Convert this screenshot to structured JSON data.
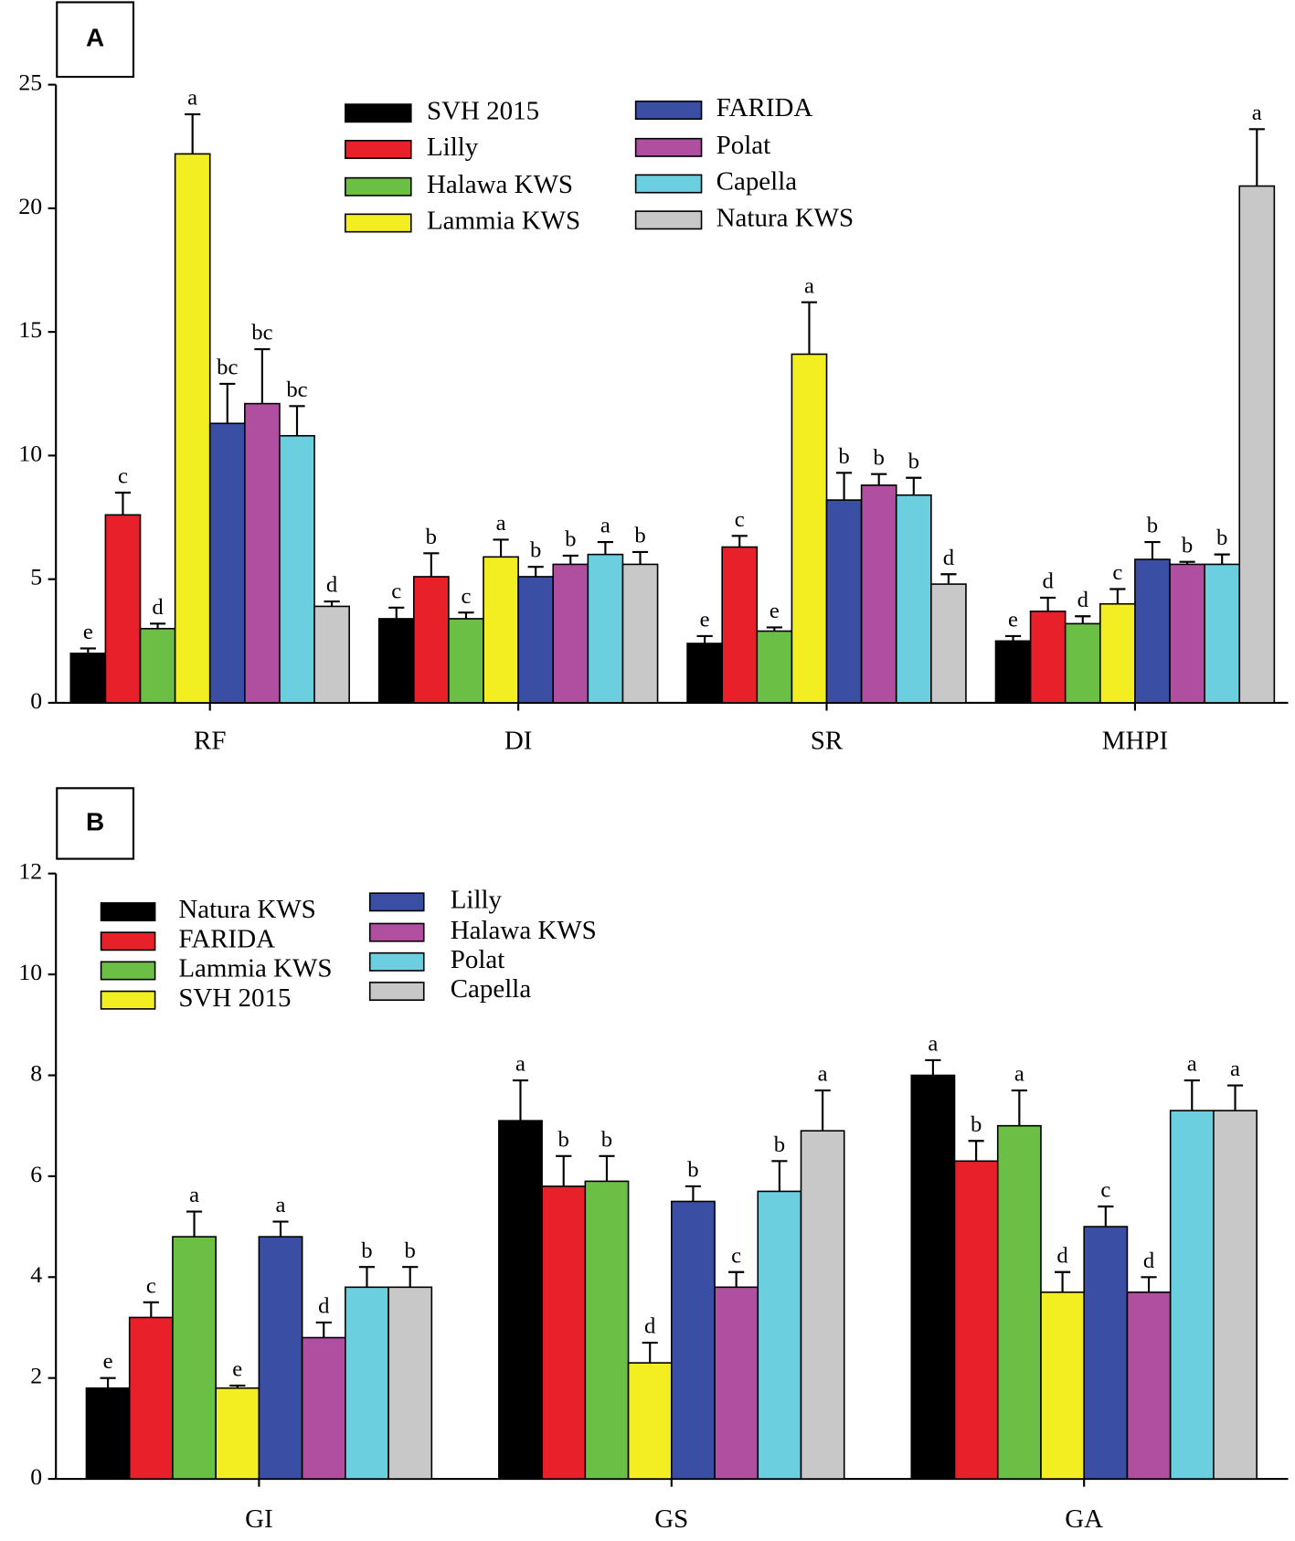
{
  "chart_data": [
    {
      "type": "bar",
      "panel": "A",
      "categories": [
        "RF",
        "DI",
        "SR",
        "MHPI"
      ],
      "ylim": [
        0,
        25
      ],
      "yticks": [
        0,
        5,
        10,
        15,
        20,
        25
      ],
      "series": [
        {
          "name": "SVH 2015",
          "color": "#000000",
          "values": [
            2.0,
            3.4,
            2.4,
            2.5
          ],
          "errors": [
            0.2,
            0.45,
            0.3,
            0.2
          ],
          "letters": [
            "e",
            "c",
            "e",
            "e"
          ]
        },
        {
          "name": "Lilly",
          "color": "#e8202a",
          "values": [
            7.6,
            5.1,
            6.3,
            3.7
          ],
          "errors": [
            0.9,
            0.95,
            0.45,
            0.55
          ],
          "letters": [
            "c",
            "b",
            "c",
            "d"
          ]
        },
        {
          "name": "Halawa KWS",
          "color": "#6cbf45",
          "values": [
            3.0,
            3.4,
            2.9,
            3.2
          ],
          "errors": [
            0.2,
            0.25,
            0.15,
            0.3
          ],
          "letters": [
            "d",
            "c",
            "e",
            "d"
          ]
        },
        {
          "name": "Lammia KWS",
          "color": "#f2ee22",
          "values": [
            22.2,
            5.9,
            14.1,
            4.0
          ],
          "errors": [
            1.6,
            0.7,
            2.1,
            0.6
          ],
          "letters": [
            "a",
            "a",
            "a",
            "c"
          ]
        },
        {
          "name": "FARIDA",
          "color": "#3a4fa3",
          "values": [
            11.3,
            5.1,
            8.2,
            5.8
          ],
          "errors": [
            1.6,
            0.4,
            1.1,
            0.7
          ],
          "letters": [
            "bc",
            "b",
            "b",
            "b"
          ]
        },
        {
          "name": "Polat",
          "color": "#b04fa0",
          "values": [
            12.1,
            5.6,
            8.8,
            5.6
          ],
          "errors": [
            2.2,
            0.35,
            0.45,
            0.1
          ],
          "letters": [
            "bc",
            "b",
            "b",
            "b"
          ]
        },
        {
          "name": "Capella",
          "color": "#6ccfe0",
          "values": [
            10.8,
            6.0,
            8.4,
            5.6
          ],
          "errors": [
            1.2,
            0.5,
            0.7,
            0.4
          ],
          "letters": [
            "bc",
            "a",
            "b",
            "b"
          ]
        },
        {
          "name": "Natura KWS",
          "color": "#c8c8c8",
          "values": [
            3.9,
            5.6,
            4.8,
            20.9
          ],
          "errors": [
            0.2,
            0.5,
            0.4,
            2.3
          ],
          "letters": [
            "d",
            "b",
            "d",
            "a"
          ]
        }
      ]
    },
    {
      "type": "bar",
      "panel": "B",
      "categories": [
        "GI",
        "GS",
        "GA"
      ],
      "ylim": [
        0,
        12
      ],
      "yticks": [
        0,
        2,
        4,
        6,
        8,
        10,
        12
      ],
      "series": [
        {
          "name": "Natura KWS",
          "color": "#000000",
          "values": [
            1.8,
            7.1,
            8.0
          ],
          "errors": [
            0.2,
            0.8,
            0.3
          ],
          "letters": [
            "e",
            "a",
            "a"
          ]
        },
        {
          "name": "FARIDA",
          "color": "#e8202a",
          "values": [
            3.2,
            5.8,
            6.3
          ],
          "errors": [
            0.3,
            0.6,
            0.4
          ],
          "letters": [
            "c",
            "b",
            "b"
          ]
        },
        {
          "name": "Lammia KWS",
          "color": "#6cbf45",
          "values": [
            4.8,
            5.9,
            7.0
          ],
          "errors": [
            0.5,
            0.5,
            0.7
          ],
          "letters": [
            "a",
            "b",
            "a"
          ]
        },
        {
          "name": "SVH 2015",
          "color": "#f2ee22",
          "values": [
            1.8,
            2.3,
            3.7
          ],
          "errors": [
            0.05,
            0.4,
            0.4
          ],
          "letters": [
            "e",
            "d",
            "d"
          ]
        },
        {
          "name": "Lilly",
          "color": "#3a4fa3",
          "values": [
            4.8,
            5.5,
            5.0
          ],
          "errors": [
            0.3,
            0.3,
            0.4
          ],
          "letters": [
            "a",
            "b",
            "c"
          ]
        },
        {
          "name": "Halawa KWS",
          "color": "#b04fa0",
          "values": [
            2.8,
            3.8,
            3.7
          ],
          "errors": [
            0.3,
            0.3,
            0.3
          ],
          "letters": [
            "d",
            "c",
            "d"
          ]
        },
        {
          "name": "Polat",
          "color": "#6ccfe0",
          "values": [
            3.8,
            5.7,
            7.3
          ],
          "errors": [
            0.4,
            0.6,
            0.6
          ],
          "letters": [
            "b",
            "b",
            "a"
          ]
        },
        {
          "name": "Capella",
          "color": "#c8c8c8",
          "values": [
            3.8,
            6.9,
            7.3
          ],
          "errors": [
            0.4,
            0.8,
            0.5
          ],
          "letters": [
            "b",
            "a",
            "a"
          ]
        }
      ]
    }
  ]
}
